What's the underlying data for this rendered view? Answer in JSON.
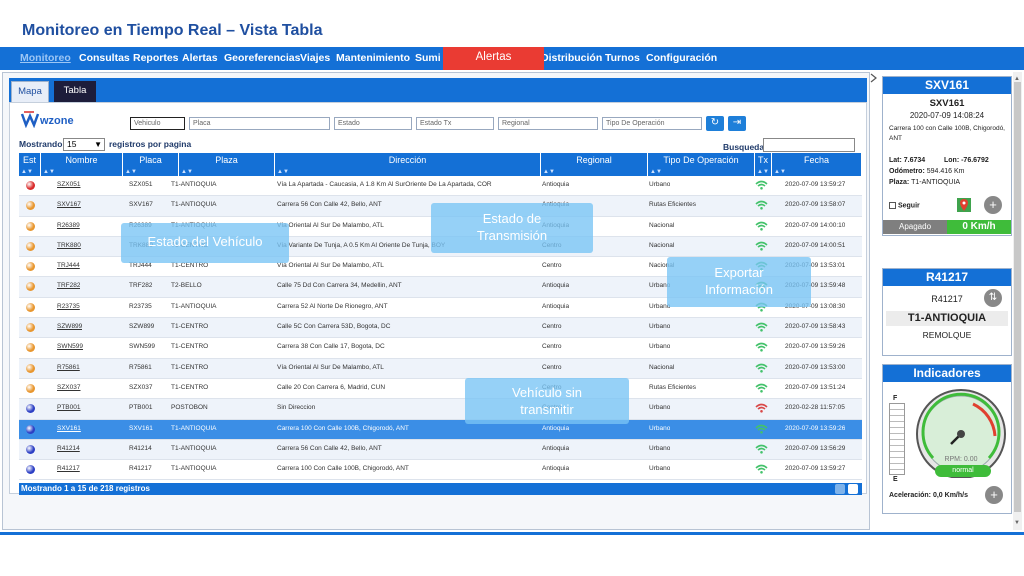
{
  "page_title": "Monitoreo en Tiempo Real – Vista Tabla",
  "nav": [
    {
      "label": "Monitoreo",
      "active": true
    },
    {
      "label": "Consultas"
    },
    {
      "label": "Reportes"
    },
    {
      "label": "Alertas"
    },
    {
      "label": "Georeferencias"
    },
    {
      "label": "Viajes"
    },
    {
      "label": "Mantenimiento"
    },
    {
      "label": "Sumi"
    },
    {
      "label": "Distribución"
    },
    {
      "label": "Turnos"
    },
    {
      "label": "Configuración"
    }
  ],
  "alert_banner": "Alertas",
  "tabs": {
    "mapa": "Mapa",
    "tabla": "Tabla"
  },
  "logo_text": "wzone",
  "filters": {
    "vehiculo": "Vehiculo",
    "placa": "Placa",
    "estado": "Estado",
    "estado_tx": "Estado Tx",
    "regional": "Regional",
    "tipo_operacion": "Tipo De Operación"
  },
  "toolbar": {
    "refresh_icon": "refresh-icon",
    "export_icon": "export-icon"
  },
  "paging": {
    "mostrando": "Mostrando",
    "per_page": "15",
    "per_page_label": "registros por pagina",
    "busqueda": "Busqueda",
    "footer": "Mostrando 1 a 15 de 218 registros"
  },
  "columns": [
    "Est",
    "Nombre",
    "Placa",
    "Plaza",
    "Dirección",
    "Regional",
    "Tipo De Operación",
    "Tx",
    "Fecha"
  ],
  "colors": {
    "red": "#d92b2b",
    "orange": "#e8962e",
    "blue": "#2c3fc4",
    "wifi": "#43c26b",
    "wifi_off": "#d94848"
  },
  "rows": [
    {
      "status": "red",
      "nombre": "SZX051",
      "placa": "SZX051",
      "plaza": "T1-ANTIOQUIA",
      "direccion": "Vía La Apartada - Caucasia, A 1.8 Km Al SurOriente De La Apartada, COR",
      "regional": "Antioquia",
      "tipo": "Urbano",
      "tx": "on",
      "fecha": "2020-07-09 13:59:27"
    },
    {
      "status": "orange",
      "nombre": "SXV167",
      "placa": "SXV167",
      "plaza": "T1-ANTIOQUIA",
      "direccion": "Carrera 56 Con Calle 42, Bello, ANT",
      "regional": "Antioquia",
      "tipo": "Rutas Eficientes",
      "tx": "on",
      "fecha": "2020-07-09 13:58:07"
    },
    {
      "status": "orange",
      "nombre": "R26389",
      "placa": "R26389",
      "plaza": "T1-ANTIOQUIA",
      "direccion": "Vía Oriental Al Sur De Malambo, ATL",
      "regional": "Antioquia",
      "tipo": "Nacional",
      "tx": "on",
      "fecha": "2020-07-09 14:00:10"
    },
    {
      "status": "orange",
      "nombre": "TRK880",
      "placa": "TRK880",
      "plaza": "T1-CENTRO",
      "direccion": "Vía Variante De Tunja, A 0.5 Km Al Oriente De Tunja, BOY",
      "regional": "Centro",
      "tipo": "Nacional",
      "tx": "on",
      "fecha": "2020-07-09 14:00:51"
    },
    {
      "status": "orange",
      "nombre": "TRJ444",
      "placa": "TRJ444",
      "plaza": "T1-CENTRO",
      "direccion": "Vía Oriental Al Sur De Malambo, ATL",
      "regional": "Centro",
      "tipo": "Nacional",
      "tx": "on",
      "fecha": "2020-07-09 13:53:01"
    },
    {
      "status": "orange",
      "nombre": "TRF282",
      "placa": "TRF282",
      "plaza": "T2-BELLO",
      "direccion": "Calle 75 Dd Con Carrera 34, Medellin, ANT",
      "regional": "Antioquia",
      "tipo": "Urbano",
      "tx": "on",
      "fecha": "2020-07-09 13:59:48"
    },
    {
      "status": "orange",
      "nombre": "R23735",
      "placa": "R23735",
      "plaza": "T1-ANTIOQUIA",
      "direccion": "Carrera 52 Al Norte De Rionegro, ANT",
      "regional": "Antioquia",
      "tipo": "Urbano",
      "tx": "on",
      "fecha": "2020-07-09 13:08:30"
    },
    {
      "status": "orange",
      "nombre": "SZW899",
      "placa": "SZW899",
      "plaza": "T1-CENTRO",
      "direccion": "Calle 5C Con Carrera 53D, Bogota, DC",
      "regional": "Centro",
      "tipo": "Urbano",
      "tx": "on",
      "fecha": "2020-07-09 13:58:43"
    },
    {
      "status": "orange",
      "nombre": "SWN599",
      "placa": "SWN599",
      "plaza": "T1-CENTRO",
      "direccion": "Carrera 38 Con Calle 17, Bogota, DC",
      "regional": "Centro",
      "tipo": "Urbano",
      "tx": "on",
      "fecha": "2020-07-09 13:59:26"
    },
    {
      "status": "orange",
      "nombre": "R75861",
      "placa": "R75861",
      "plaza": "T1-CENTRO",
      "direccion": "Vía Oriental Al Sur De Malambo, ATL",
      "regional": "Centro",
      "tipo": "Nacional",
      "tx": "on",
      "fecha": "2020-07-09 13:53:00"
    },
    {
      "status": "orange",
      "nombre": "SZX037",
      "placa": "SZX037",
      "plaza": "T1-CENTRO",
      "direccion": "Calle 20 Con Carrera 6, Madrid, CUN",
      "regional": "Centro",
      "tipo": "Rutas Eficientes",
      "tx": "on",
      "fecha": "2020-07-09 13:51:24"
    },
    {
      "status": "blue",
      "nombre": "PTB001",
      "placa": "PTB001",
      "plaza": "POSTOBON",
      "direccion": "Sin Direccion",
      "regional": "Centro",
      "tipo": "Urbano",
      "tx": "off",
      "fecha": "2020-02-28 11:57:05"
    },
    {
      "status": "blue",
      "nombre": "SXV161",
      "placa": "SXV161",
      "plaza": "T1-ANTIOQUIA",
      "direccion": "Carrera 100 Con Calle 100B, Chigorodó, ANT",
      "regional": "Antioquia",
      "tipo": "Urbano",
      "tx": "on",
      "fecha": "2020-07-09 13:59:26",
      "selected": true
    },
    {
      "status": "blue",
      "nombre": "R41214",
      "placa": "R41214",
      "plaza": "T1-ANTIOQUIA",
      "direccion": "Carrera 56 Con Calle 42, Bello, ANT",
      "regional": "Antioquia",
      "tipo": "Urbano",
      "tx": "on",
      "fecha": "2020-07-09 13:56:29"
    },
    {
      "status": "blue",
      "nombre": "R41217",
      "placa": "R41217",
      "plaza": "T1-ANTIOQUIA",
      "direccion": "Carrera 100 Con Calle 100B, Chigorodó, ANT",
      "regional": "Antioquia",
      "tipo": "Urbano",
      "tx": "on",
      "fecha": "2020-07-09 13:59:27"
    }
  ],
  "overlays": {
    "estado_vehiculo": "Estado del Vehículo",
    "estado_transmision": "Estado de Transmisión",
    "exportar": "Exportar Información",
    "sin_transmitir": "Vehículo sin transmitir"
  },
  "vehicle_card": {
    "title": "SXV161",
    "name": "SXV161",
    "datetime": "2020-07-09 14:08:24",
    "address": "Carrera 100 con Calle 100B, Chigorodó, ANT",
    "lat": "Lat: 7.6734",
    "lon": "Lon: -76.6792",
    "odometro_label": "Odómetro:",
    "odometro": "594.416 Km",
    "plaza_label": "Plaza:",
    "plaza": "T1-ANTIOQUIA",
    "seguir": "Seguir",
    "estado": "Apagado",
    "speed": "0 Km/h"
  },
  "trailer_card": {
    "title": "R41217",
    "code": "R41217",
    "plaza": "T1-ANTIOQUIA",
    "type": "REMOLQUE"
  },
  "indicators_card": {
    "title": "Indicadores",
    "fuel_full": "F",
    "fuel_empty": "E",
    "rpm_label": "RPM: 0.00",
    "status": "normal",
    "aceleracion": "Aceleración: 0,0 Km/h/s"
  }
}
